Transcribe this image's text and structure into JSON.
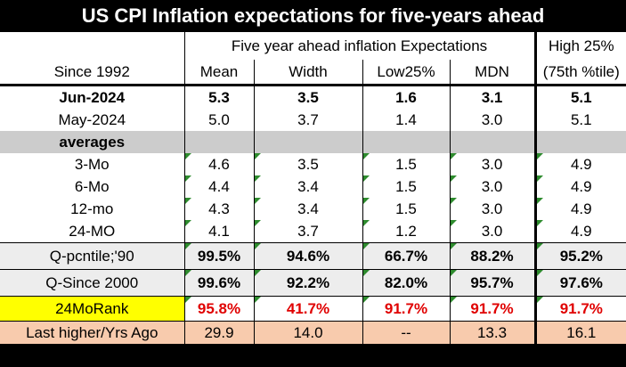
{
  "title": "US CPI Inflation expectations for five-years ahead",
  "header": {
    "group_label": "Five year ahead inflation Expectations",
    "high_label_1": "High 25%",
    "high_label_2": "(75th %tile)",
    "columns": [
      "Since 1992",
      "Mean",
      "Width",
      "Low25%",
      "MDN"
    ]
  },
  "rows": {
    "jun": {
      "label": "Jun-2024",
      "values": [
        "5.3",
        "3.5",
        "1.6",
        "3.1",
        "5.1"
      ]
    },
    "may": {
      "label": "May-2024",
      "values": [
        "5.0",
        "3.7",
        "1.4",
        "3.0",
        "5.1"
      ]
    },
    "averages_label": "averages",
    "m3": {
      "label": "3-Mo",
      "values": [
        "4.6",
        "3.5",
        "1.5",
        "3.0",
        "4.9"
      ]
    },
    "m6": {
      "label": "6-Mo",
      "values": [
        "4.4",
        "3.4",
        "1.5",
        "3.0",
        "4.9"
      ]
    },
    "m12": {
      "label": "12-mo",
      "values": [
        "4.3",
        "3.4",
        "1.5",
        "3.0",
        "4.9"
      ]
    },
    "m24": {
      "label": "24-MO",
      "values": [
        "4.1",
        "3.7",
        "1.2",
        "3.0",
        "4.9"
      ]
    },
    "qp90": {
      "label": "Q-pcntile;'90",
      "values": [
        "99.5%",
        "94.6%",
        "66.7%",
        "88.2%",
        "95.2%"
      ]
    },
    "q2000": {
      "label": "Q-Since 2000",
      "values": [
        "99.6%",
        "92.2%",
        "82.0%",
        "95.7%",
        "97.6%"
      ]
    },
    "rank": {
      "label": "24MoRank",
      "values": [
        "95.8%",
        "41.7%",
        "91.7%",
        "91.7%",
        "91.7%"
      ]
    },
    "last": {
      "label": "Last higher/Yrs Ago",
      "values": [
        "29.9",
        "14.0",
        "--",
        "13.3",
        "16.1"
      ]
    }
  },
  "colors": {
    "background": "#000000",
    "gray_band": "#cccccc",
    "light_gray": "#ededed",
    "highlight_yellow": "#ffff00",
    "peach": "#f8cbad",
    "rank_red": "#e00000",
    "marker_green": "#2e8b2e"
  }
}
